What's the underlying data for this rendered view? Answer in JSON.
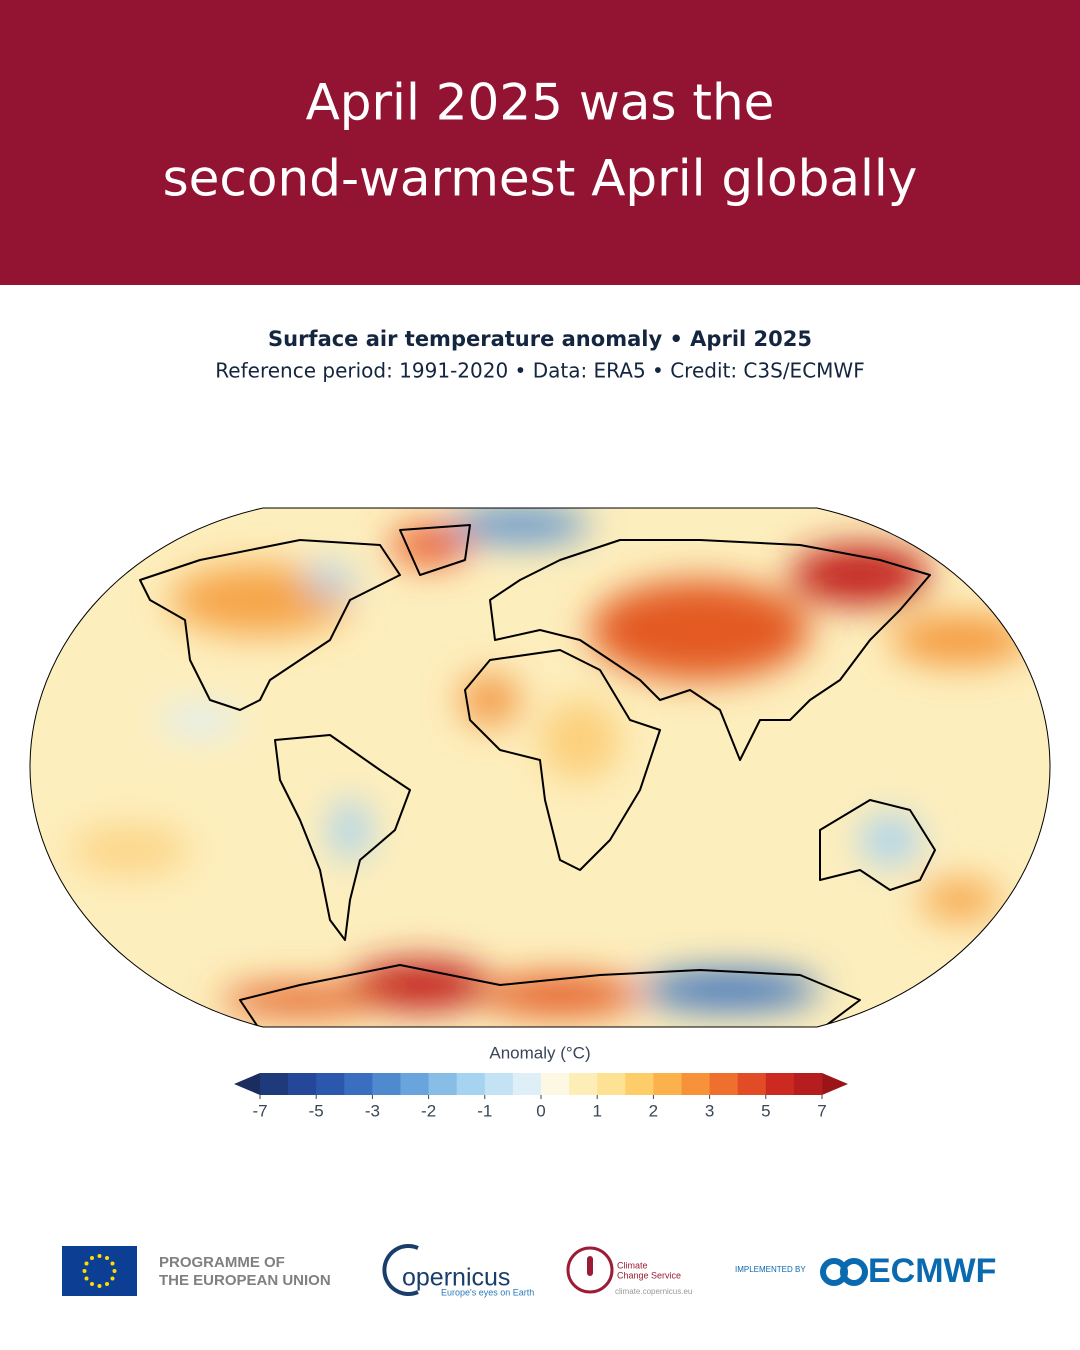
{
  "header": {
    "title_lines": [
      "April 2025 was the",
      "second-warmest April globally"
    ]
  },
  "map": {
    "title": "Surface air temperature anomaly • April 2025",
    "subtitle": "Reference period: 1991-2020 • Data: ERA5 • Credit: C3S/ECMWF"
  },
  "colorbar": {
    "label": "Anomaly (°C)",
    "ticks": [
      -7,
      -5,
      -3,
      -2,
      -1,
      0,
      1,
      2,
      3,
      5,
      7
    ],
    "extend_colors": [
      "#1b2c5e",
      "#9b1518"
    ],
    "colors": [
      "#1f3a7a",
      "#24479a",
      "#2b58ad",
      "#3a6fbf",
      "#4f8acf",
      "#6aa4dc",
      "#88bde6",
      "#a6d3ef",
      "#c3e3f4",
      "#deeff8",
      "#fdf8e4",
      "#fdeeb8",
      "#fde293",
      "#fccd69",
      "#fbb14c",
      "#f7923a",
      "#ef6f2e",
      "#e14b25",
      "#cc2a21",
      "#b51d1f"
    ]
  },
  "footer": {
    "eu": [
      "PROGRAMME OF",
      "THE EUROPEAN UNION"
    ],
    "copernicus": {
      "name": "opernicus",
      "tagline": "Europe's eyes on Earth"
    },
    "c3s": {
      "lines": [
        "Climate",
        "Change Service"
      ],
      "url": "climate.copernicus.eu"
    },
    "ecmwf": {
      "prefix": "IMPLEMENTED BY",
      "name": "ECMWF"
    }
  }
}
